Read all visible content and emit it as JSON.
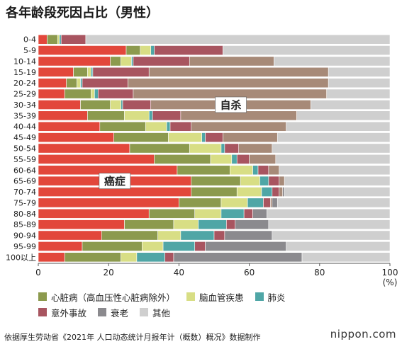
{
  "chart_data": {
    "type": "bar",
    "orientation": "horizontal",
    "stacked": true,
    "title": "各年龄段死因占比（男性）",
    "unit_label": "(%)",
    "categories": [
      "0-4",
      "5-9",
      "10-14",
      "15-19",
      "20-24",
      "25-29",
      "30-34",
      "35-39",
      "40-44",
      "45-49",
      "50-54",
      "55-59",
      "60-64",
      "65-69",
      "70-74",
      "75-79",
      "80-84",
      "85-89",
      "90-94",
      "95-99",
      "100以上"
    ],
    "x_ticks": [
      "0",
      "20",
      "40",
      "60",
      "80",
      "100"
    ],
    "xlim": [
      0,
      100
    ],
    "grid": false,
    "legend_position": "bottom",
    "series": [
      {
        "name": "癌症",
        "color": "#e2473b",
        "values": [
          2.5,
          25,
          20.5,
          10,
          8,
          7.5,
          12,
          14,
          17.5,
          21.5,
          26,
          33,
          39.5,
          43.5,
          43.5,
          40,
          31.5,
          24.5,
          18,
          12.5,
          7.5
        ]
      },
      {
        "name": "心脏病（高血压性心脏病除外）",
        "color": "#8c9a4e",
        "values": [
          3,
          4,
          3,
          4,
          3,
          7.5,
          8.5,
          10.5,
          13,
          15.5,
          17,
          16,
          15,
          14,
          13,
          12,
          13,
          14,
          16,
          17,
          16
        ]
      },
      {
        "name": "脑血管疾患",
        "color": "#d8de85",
        "values": [
          0.5,
          3,
          3,
          1,
          1,
          1,
          3,
          7,
          6,
          9.5,
          9,
          6,
          6.5,
          5.5,
          7,
          7.5,
          7.5,
          7,
          6.5,
          6,
          4.5
        ]
      },
      {
        "name": "肺炎",
        "color": "#4fa6a6",
        "values": [
          0.5,
          1,
          0.5,
          0.5,
          0.5,
          1,
          0.5,
          1,
          1,
          1,
          1,
          1.5,
          1.5,
          2.5,
          3,
          4.5,
          6.5,
          8,
          9.5,
          9,
          8
        ]
      },
      {
        "name": "意外事故",
        "color": "#a85560",
        "values": [
          7,
          19.5,
          16,
          16,
          13,
          10,
          8,
          8,
          6,
          5,
          4,
          3.5,
          3,
          3,
          2,
          2,
          2.5,
          2.5,
          3,
          3,
          2.5
        ]
      },
      {
        "name": "自杀",
        "color": "#a78a78",
        "values": [
          0,
          0,
          24,
          51,
          57,
          55,
          45.5,
          33,
          27,
          15.5,
          9.5,
          7.5,
          3,
          1.5,
          1,
          0.5,
          0,
          0,
          0,
          0,
          0
        ]
      },
      {
        "name": "衰老",
        "color": "#8b8a8e",
        "values": [
          0,
          0,
          0,
          0,
          0,
          0,
          0,
          0,
          0,
          0,
          0,
          0,
          0,
          0,
          0.5,
          1.5,
          4,
          9.5,
          13.5,
          23,
          36.5
        ]
      },
      {
        "name": "其他",
        "color": "#cfcfcf",
        "values": [
          86.5,
          47.5,
          33,
          17.5,
          17.5,
          18,
          22.5,
          26.5,
          29.5,
          32,
          33.5,
          32.5,
          31.5,
          30,
          30,
          32,
          35,
          34.5,
          33.5,
          29.5,
          25
        ]
      }
    ],
    "annotations": [
      {
        "text": "自杀",
        "series": "自杀",
        "category": "30-34"
      },
      {
        "text": "癌症",
        "series": "癌症",
        "category": "65-69"
      }
    ]
  },
  "legend": {
    "row1": [
      "心脏病（高血压性心脏病除外）",
      "脑血管疾患",
      "肺炎"
    ],
    "row2": [
      "意外事故",
      "衰老",
      "其他"
    ]
  },
  "source_note": "依据厚生劳动省《2021年 人口动态统计月报年计（概数）概况》数据制作",
  "brand": "nippon.com"
}
